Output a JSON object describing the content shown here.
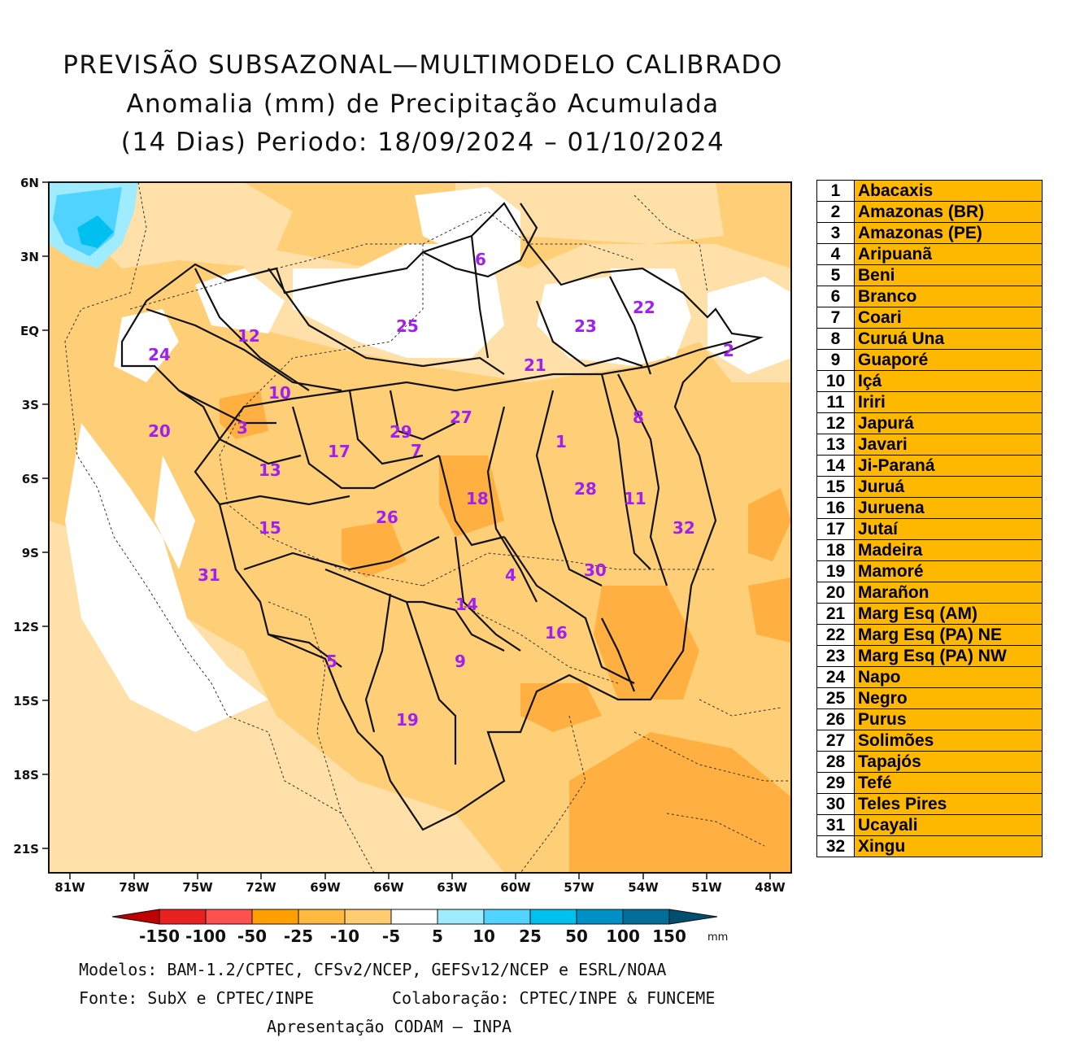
{
  "title": {
    "line1": "PREVISÃO SUBSAZONAL—MULTIMODELO CALIBRADO",
    "line2": "Anomalia (mm) de Precipitação Acumulada",
    "line3": "(14 Dias) Periodo: 18/09/2024 – 01/10/2024"
  },
  "axes": {
    "lat_labels": [
      "6N",
      "3N",
      "EQ",
      "3S",
      "6S",
      "9S",
      "12S",
      "15S",
      "18S",
      "21S"
    ],
    "lon_labels": [
      "81W",
      "78W",
      "75W",
      "72W",
      "69W",
      "66W",
      "63W",
      "60W",
      "57W",
      "54W",
      "51W",
      "48W"
    ]
  },
  "basin_markers": [
    "1",
    "2",
    "3",
    "4",
    "5",
    "6",
    "7",
    "8",
    "9",
    "10",
    "11",
    "12",
    "13",
    "14",
    "15",
    "16",
    "17",
    "18",
    "19",
    "20",
    "21",
    "22",
    "23",
    "24",
    "25",
    "26",
    "27",
    "28",
    "29",
    "30",
    "31",
    "32"
  ],
  "legend": [
    {
      "num": "1",
      "name": "Abacaxis"
    },
    {
      "num": "2",
      "name": "Amazonas (BR)"
    },
    {
      "num": "3",
      "name": "Amazonas (PE)"
    },
    {
      "num": "4",
      "name": "Aripuanã"
    },
    {
      "num": "5",
      "name": "Beni"
    },
    {
      "num": "6",
      "name": "Branco"
    },
    {
      "num": "7",
      "name": "Coari"
    },
    {
      "num": "8",
      "name": "Curuá Una"
    },
    {
      "num": "9",
      "name": "Guaporé"
    },
    {
      "num": "10",
      "name": "Içá"
    },
    {
      "num": "11",
      "name": "Iriri"
    },
    {
      "num": "12",
      "name": "Japurá"
    },
    {
      "num": "13",
      "name": "Javari"
    },
    {
      "num": "14",
      "name": "Ji-Paraná"
    },
    {
      "num": "15",
      "name": "Juruá"
    },
    {
      "num": "16",
      "name": "Juruena"
    },
    {
      "num": "17",
      "name": "Jutaí"
    },
    {
      "num": "18",
      "name": "Madeira"
    },
    {
      "num": "19",
      "name": "Mamoré"
    },
    {
      "num": "20",
      "name": "Marañon"
    },
    {
      "num": "21",
      "name": "Marg Esq (AM)"
    },
    {
      "num": "22",
      "name": "Marg Esq (PA) NE"
    },
    {
      "num": "23",
      "name": "Marg Esq (PA) NW"
    },
    {
      "num": "24",
      "name": "Napo"
    },
    {
      "num": "25",
      "name": "Negro"
    },
    {
      "num": "26",
      "name": "Purus"
    },
    {
      "num": "27",
      "name": "Solimões"
    },
    {
      "num": "28",
      "name": "Tapajós"
    },
    {
      "num": "29",
      "name": "Tefé"
    },
    {
      "num": "30",
      "name": "Teles Pires"
    },
    {
      "num": "31",
      "name": "Ucayali"
    },
    {
      "num": "32",
      "name": "Xingu"
    }
  ],
  "colorbar": {
    "labels": [
      "-150",
      "-100",
      "-50",
      "-25",
      "-10",
      "-5",
      "5",
      "10",
      "25",
      "50",
      "100",
      "150"
    ],
    "unit": "mm",
    "colors": [
      "#c00000",
      "#e82020",
      "#ff5050",
      "#ffa000",
      "#ffb840",
      "#ffcc70",
      "#ffe0a8",
      "#ffffff",
      "#a0ecff",
      "#50d4ff",
      "#00c0f0",
      "#0090c8",
      "#006e98",
      "#004e70"
    ]
  },
  "footer": {
    "models": "Modelos: BAM-1.2/CPTEC, CFSv2/NCEP, GEFSv12/NCEP e ESRL/NOAA",
    "source": "Fonte: SubX e CPTEC/INPE",
    "collab": "Colaboração: CPTEC/INPE & FUNCEME",
    "presentation": "Apresentação CODAM – INPA"
  }
}
